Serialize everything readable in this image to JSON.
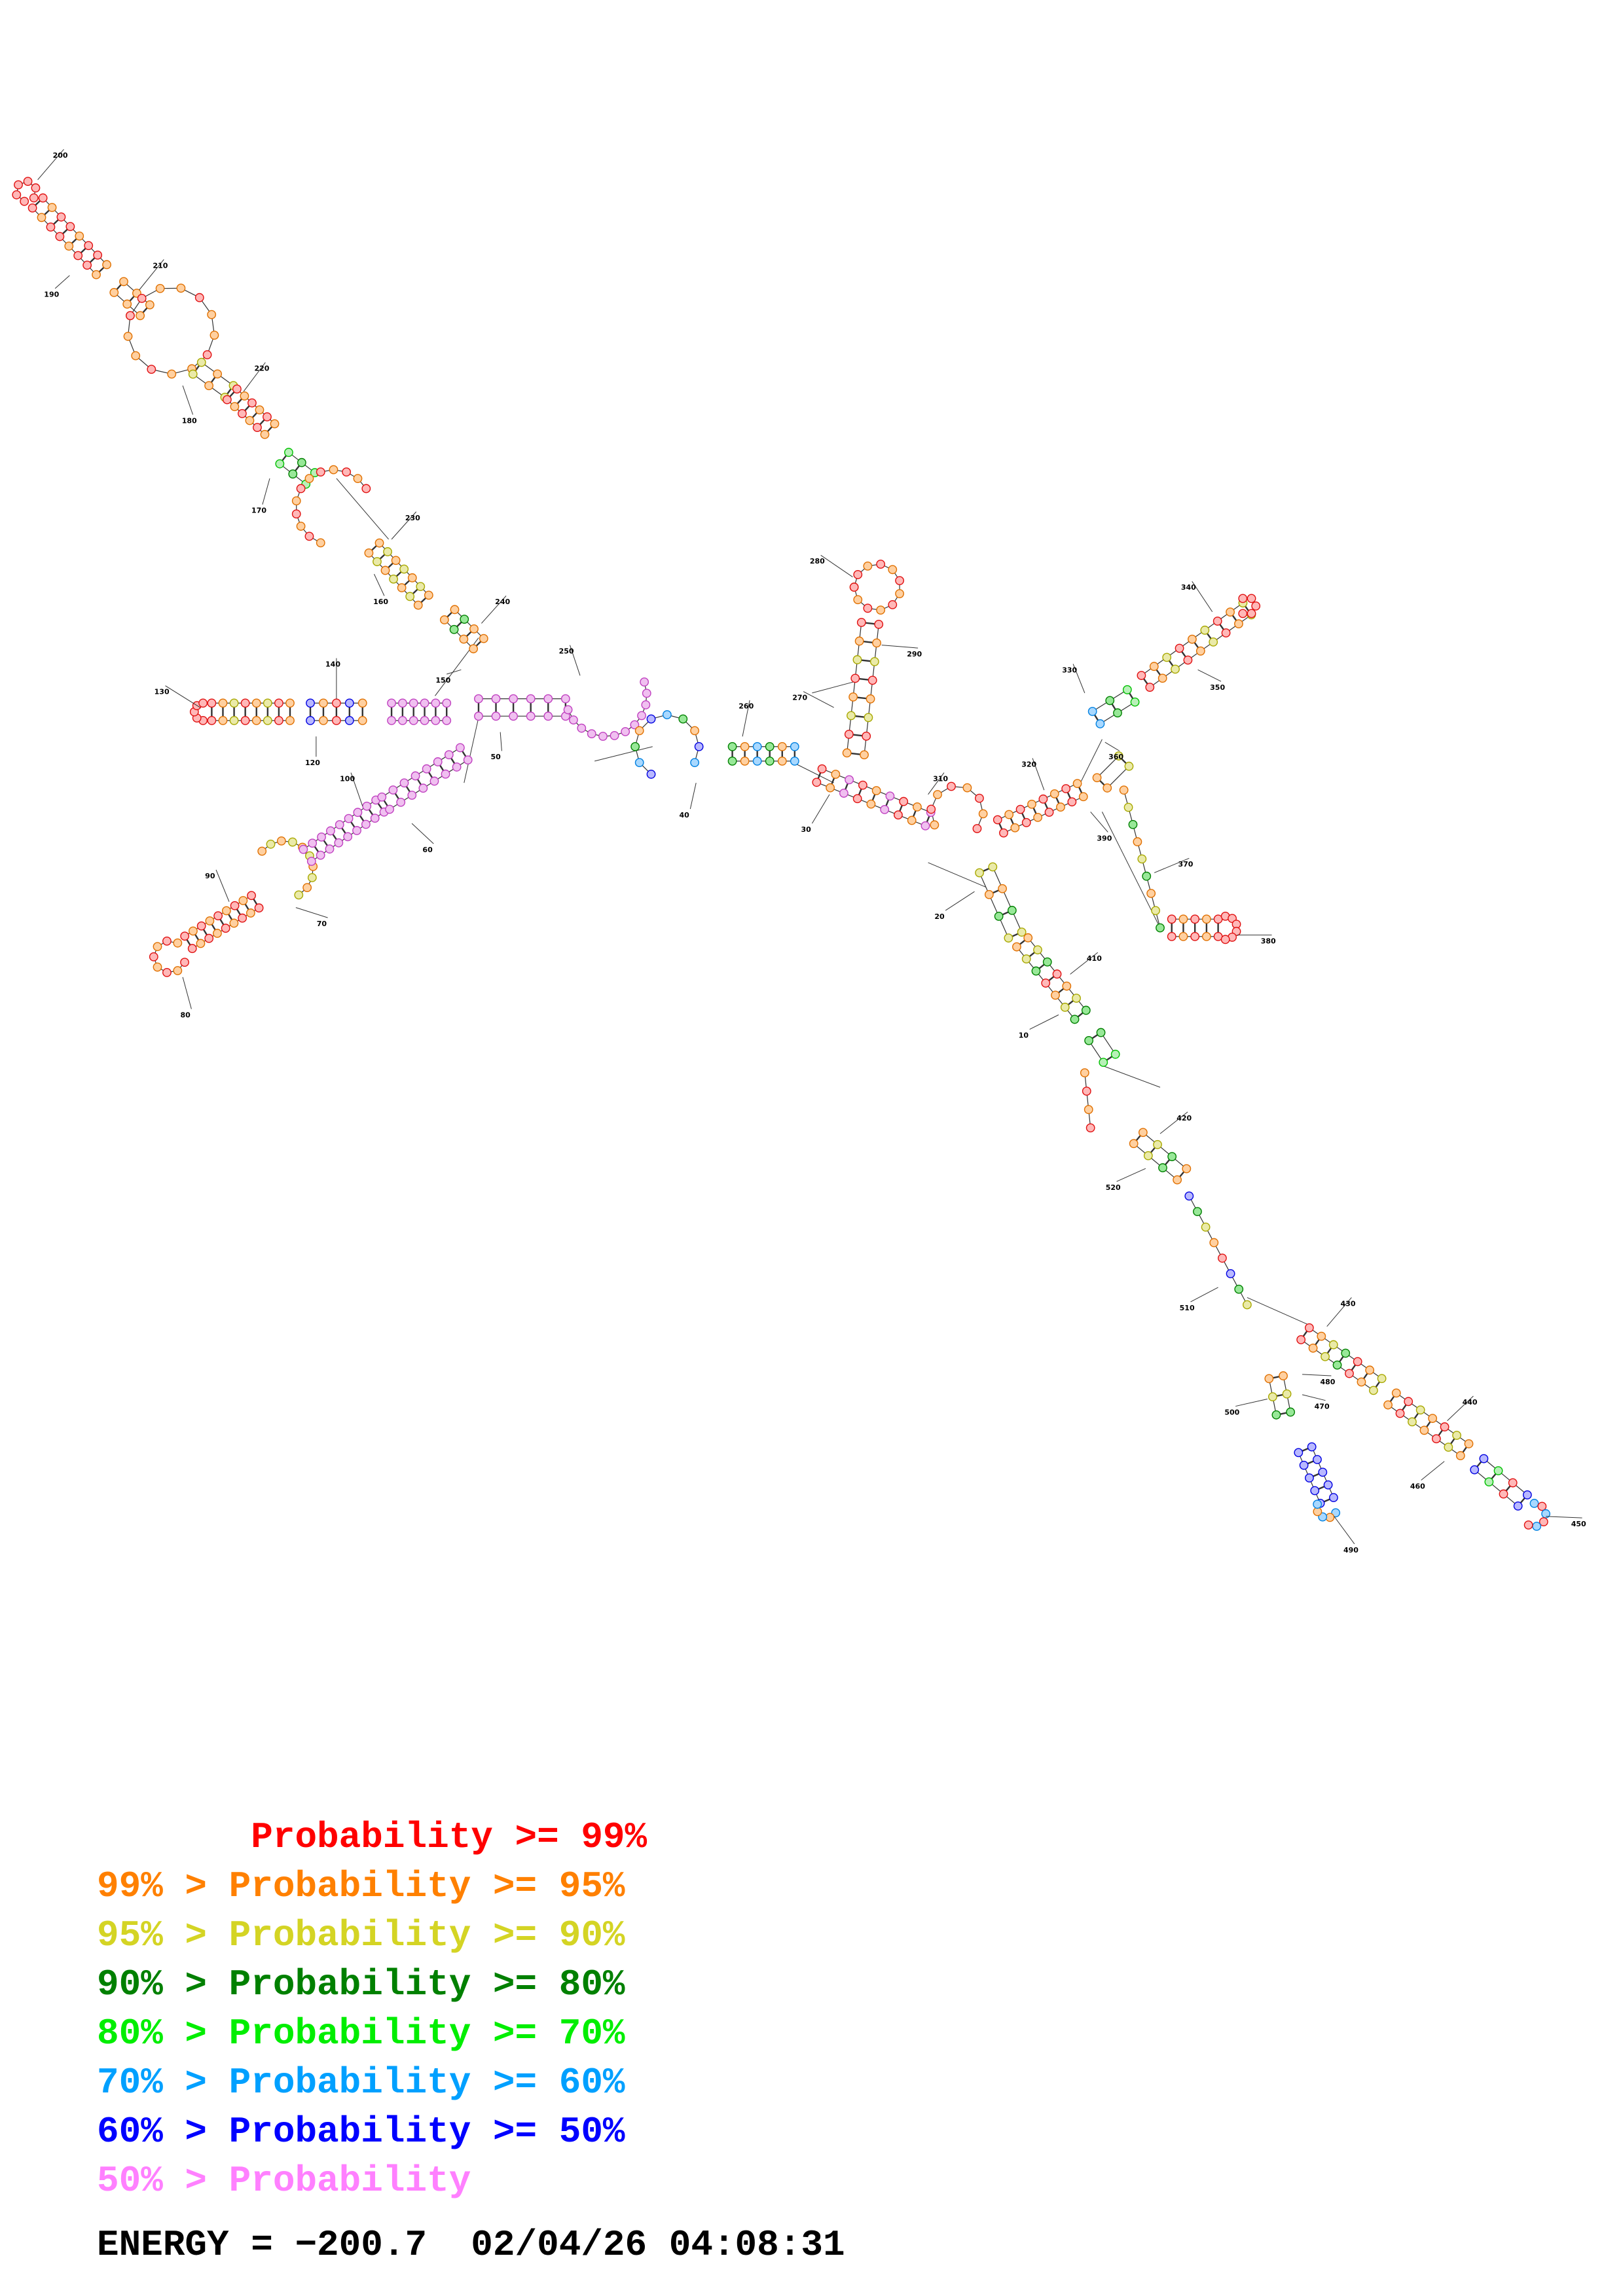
{
  "structure": {
    "position_labels": [
      "10",
      "20",
      "30",
      "40",
      "50",
      "60",
      "70",
      "80",
      "90",
      "100",
      "120",
      "130",
      "140",
      "150",
      "160",
      "170",
      "180",
      "190",
      "200",
      "210",
      "220",
      "230",
      "240",
      "250",
      "260",
      "270",
      "280",
      "290",
      "310",
      "320",
      "330",
      "340",
      "350",
      "360",
      "370",
      "380",
      "390",
      "410",
      "420",
      "430",
      "440",
      "450",
      "460",
      "470",
      "480",
      "490",
      "500",
      "510",
      "520"
    ]
  },
  "legend": {
    "rows": [
      {
        "label": "       Probability >= 99%",
        "color": "#ff0000"
      },
      {
        "label": "99% > Probability >= 95%",
        "color": "#ff8000"
      },
      {
        "label": "95% > Probability >= 90%",
        "color": "#d4d424"
      },
      {
        "label": "90% > Probability >= 80%",
        "color": "#008000"
      },
      {
        "label": "80% > Probability >= 70%",
        "color": "#00ee00"
      },
      {
        "label": "70% > Probability >= 60%",
        "color": "#00a0ff"
      },
      {
        "label": "60% > Probability >= 50%",
        "color": "#0000ff"
      },
      {
        "label": "50% > Probability",
        "color": "#ff80ff"
      }
    ]
  },
  "footer": {
    "energy": "ENERGY = −200.7  02/04/26 04:08:31"
  }
}
